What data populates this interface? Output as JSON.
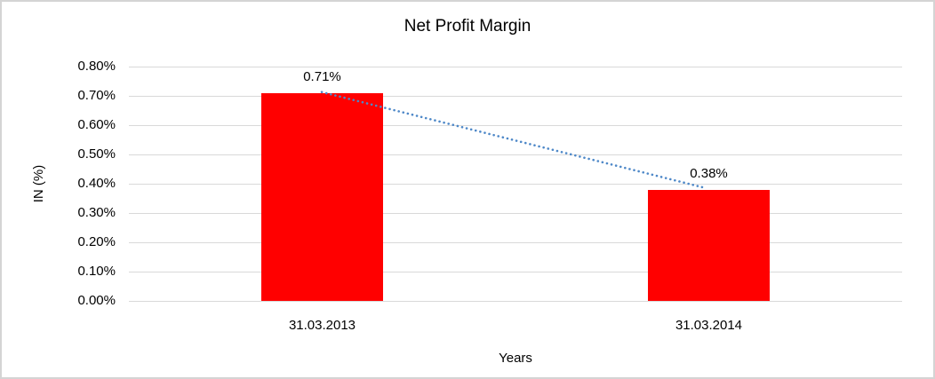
{
  "chart_data": {
    "type": "bar",
    "title": "Net Profit Margin",
    "xlabel": "Years",
    "ylabel": "IN (%)",
    "categories": [
      "31.03.2013",
      "31.03.2014"
    ],
    "values": [
      0.71,
      0.38
    ],
    "data_labels": [
      "0.71%",
      "0.38%"
    ],
    "ylim": [
      0,
      0.8
    ],
    "y_ticks": [
      {
        "v": 0.8,
        "label": "0.80%"
      },
      {
        "v": 0.7,
        "label": "0.70%"
      },
      {
        "v": 0.6,
        "label": "0.60%"
      },
      {
        "v": 0.5,
        "label": "0.50%"
      },
      {
        "v": 0.4,
        "label": "0.40%"
      },
      {
        "v": 0.3,
        "label": "0.30%"
      },
      {
        "v": 0.2,
        "label": "0.20%"
      },
      {
        "v": 0.1,
        "label": "0.10%"
      },
      {
        "v": 0.0,
        "label": "0.00%"
      }
    ],
    "grid": true,
    "legend_position": "none",
    "bar_color": "#ff0000",
    "trendline": {
      "style": "dotted",
      "color": "#4e88c8",
      "from_category_index": 0,
      "to_category_index": 1,
      "from_value": 0.71,
      "to_value": 0.38
    }
  }
}
